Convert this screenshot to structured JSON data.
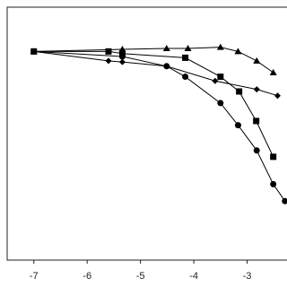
{
  "chart_data": {
    "type": "line",
    "xlim": [
      -7.5,
      -2.0
    ],
    "xticks": [
      -7,
      -6,
      -5,
      -4,
      -3
    ],
    "ylim": [
      0,
      120
    ],
    "series": [
      {
        "marker": "square",
        "color": "#000000",
        "x": [
          -7,
          -5.6,
          -5.34,
          -4.16,
          -3.5,
          -3.15,
          -2.83,
          -2.51
        ],
        "values": [
          99,
          99,
          98,
          96,
          87,
          80,
          66,
          49
        ]
      },
      {
        "marker": "diamond",
        "color": "#000000",
        "x": [
          -7,
          -5.6,
          -5.34,
          -4.51,
          -3.6,
          -2.82,
          -2.43
        ],
        "values": [
          99,
          94.5,
          94,
          92,
          85,
          81,
          78
        ]
      },
      {
        "marker": "triangle",
        "color": "#000000",
        "x": [
          -7,
          -5.34,
          -4.51,
          -4.11,
          -3.5,
          -3.17,
          -2.82,
          -2.51
        ],
        "values": [
          99,
          100,
          100.4,
          100.4,
          101,
          99,
          94.5,
          89
        ]
      },
      {
        "marker": "circle",
        "color": "#000000",
        "x": [
          -7,
          -5.34,
          -4.51,
          -4.16,
          -3.5,
          -3.17,
          -2.82,
          -2.51,
          -2.29
        ],
        "values": [
          99,
          96.6,
          92,
          87,
          74.5,
          64,
          52,
          36,
          28
        ]
      }
    ]
  }
}
